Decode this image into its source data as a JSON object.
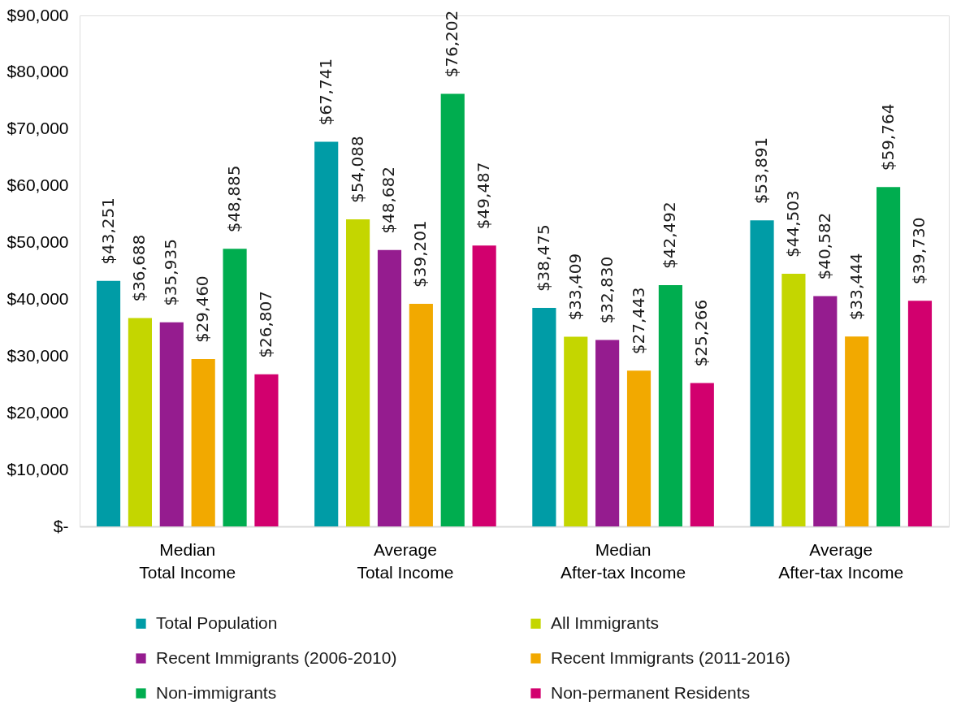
{
  "chart_data": {
    "type": "bar",
    "categories": [
      "Median\nTotal Income",
      "Average\nTotal Income",
      "Median\nAfter-tax Income",
      "Average\nAfter-tax Income"
    ],
    "series": [
      {
        "name": "Total Population",
        "color": "#009ca6",
        "values": [
          43251,
          67741,
          38475,
          53891
        ],
        "value_labels": [
          "$43,251",
          "$67,741",
          "$38,475",
          "$53,891"
        ]
      },
      {
        "name": "All Immigrants",
        "color": "#c4d600",
        "values": [
          36688,
          54088,
          33409,
          44503
        ],
        "value_labels": [
          "$36,688",
          "$54,088",
          "$33,409",
          "$44,503"
        ]
      },
      {
        "name": "Recent Immigrants (2006-2010)",
        "color": "#951c8f",
        "values": [
          35935,
          48682,
          32830,
          40582
        ],
        "value_labels": [
          "$35,935",
          "$48,682",
          "$32,830",
          "$40,582"
        ]
      },
      {
        "name": "Recent Immigrants (2011-2016)",
        "color": "#f2a900",
        "values": [
          29460,
          39201,
          27443,
          33444
        ],
        "value_labels": [
          "$29,460",
          "$39,201",
          "$27,443",
          "$33,444"
        ]
      },
      {
        "name": "Non-immigrants",
        "color": "#00ad4f",
        "values": [
          48885,
          76202,
          42492,
          59764
        ],
        "value_labels": [
          "$48,885",
          "$76,202",
          "$42,492",
          "$59,764"
        ]
      },
      {
        "name": "Non-permanent Residents",
        "color": "#d2006e",
        "values": [
          26807,
          49487,
          25266,
          39730
        ],
        "value_labels": [
          "$26,807",
          "$49,487",
          "$25,266",
          "$39,730"
        ]
      }
    ],
    "ylim": [
      0,
      90000
    ],
    "yticks": [
      {
        "value": 0,
        "label": "$-"
      },
      {
        "value": 10000,
        "label": "$10,000"
      },
      {
        "value": 20000,
        "label": "$20,000"
      },
      {
        "value": 30000,
        "label": "$30,000"
      },
      {
        "value": 40000,
        "label": "$40,000"
      },
      {
        "value": 50000,
        "label": "$50,000"
      },
      {
        "value": 60000,
        "label": "$60,000"
      },
      {
        "value": 70000,
        "label": "$70,000"
      },
      {
        "value": 80000,
        "label": "$80,000"
      },
      {
        "value": 90000,
        "label": "$90,000"
      }
    ],
    "grid": false,
    "legend": "bottom"
  }
}
